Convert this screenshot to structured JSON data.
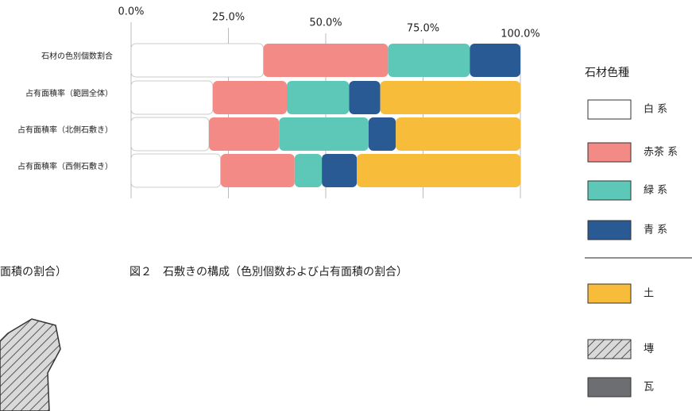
{
  "chart_data": {
    "type": "stacked-bar-horizontal",
    "caption": "図２　石敷きの構成（色別個数および占有面積の割合）",
    "left_caption": "面積の割合）",
    "categories": [
      "石材の色別個数割合",
      "占有面積率（範囲全体）",
      "占有面積率（北側石敷き）",
      "占有面積率（西側石敷き）"
    ],
    "series": [
      {
        "name": "白 系",
        "color": "#ffffff",
        "values": [
          34,
          21,
          20,
          23
        ]
      },
      {
        "name": "赤茶 系",
        "color": "#f48a85",
        "values": [
          32,
          19,
          18,
          19
        ]
      },
      {
        "name": "緑 系",
        "color": "#5ec8b8",
        "values": [
          21,
          16,
          23,
          7
        ]
      },
      {
        "name": "青 系",
        "color": "#2a5a94",
        "values": [
          13,
          8,
          7,
          9
        ]
      },
      {
        "name": "土",
        "color": "#f7bd3a",
        "values": [
          0,
          36,
          32,
          42
        ]
      }
    ],
    "legend_title": "石材色種",
    "other_legend_items": [
      {
        "name": "塼",
        "color": "#cccccc"
      },
      {
        "name": "瓦",
        "color": "#6d6e71"
      }
    ],
    "xlim": [
      0,
      100
    ],
    "xticks": [
      {
        "value": 0,
        "label": "0.0%"
      },
      {
        "value": 25,
        "label": "25.0%"
      },
      {
        "value": 50,
        "label": "50.0%"
      },
      {
        "value": 75,
        "label": "75.0%"
      },
      {
        "value": 100,
        "label": "100.0%"
      }
    ],
    "grid": true
  }
}
